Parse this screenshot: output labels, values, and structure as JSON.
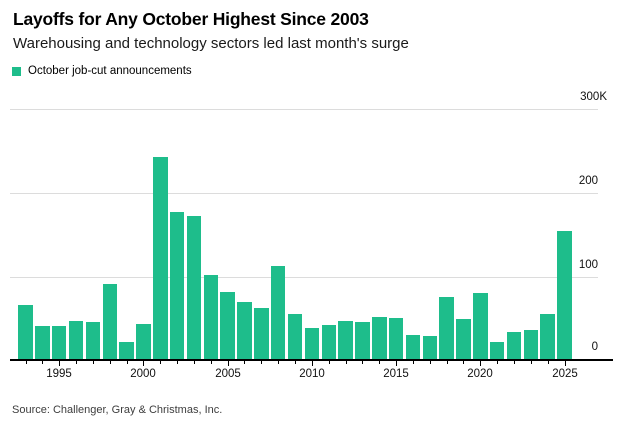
{
  "header": {
    "title": "Layoffs for Any October Highest Since 2003",
    "subtitle": "Warehousing and technology sectors led last month's surge"
  },
  "legend": {
    "label": "October job-cut announcements",
    "swatch_color": "#1ebd8b"
  },
  "chart_data": {
    "type": "bar",
    "title": "Layoffs for Any October Highest Since 2003",
    "series_name": "October job-cut announcements",
    "unit": "thousands of job cuts",
    "categories": [
      1993,
      1994,
      1995,
      1996,
      1997,
      1998,
      1999,
      2000,
      2001,
      2002,
      2003,
      2004,
      2005,
      2006,
      2007,
      2008,
      2009,
      2010,
      2011,
      2012,
      2013,
      2014,
      2015,
      2016,
      2017,
      2018,
      2019,
      2020,
      2021,
      2022,
      2023,
      2024,
      2025
    ],
    "values": [
      65,
      40,
      40,
      46,
      45,
      90,
      21,
      43,
      242,
      176,
      171,
      101,
      81,
      69,
      62,
      112,
      55,
      38,
      42,
      47,
      45,
      51,
      50,
      30,
      29,
      75,
      49,
      80,
      22,
      33,
      36,
      55,
      153
    ],
    "ylim": [
      0,
      300
    ],
    "y_ticks": [
      {
        "value": 300,
        "label": "300K"
      },
      {
        "value": 200,
        "label": "200"
      },
      {
        "value": 100,
        "label": "100"
      },
      {
        "value": 0,
        "label": "0"
      }
    ],
    "x_tick_labels": [
      "1995",
      "2000",
      "2005",
      "2010",
      "2015",
      "2020",
      "2025"
    ],
    "bar_color": "#1ebd8b",
    "grid": "horizontal",
    "legend_position": "top-left",
    "value_axis_side": "right"
  },
  "source": {
    "text": "Source: Challenger, Gray & Christmas, Inc."
  }
}
